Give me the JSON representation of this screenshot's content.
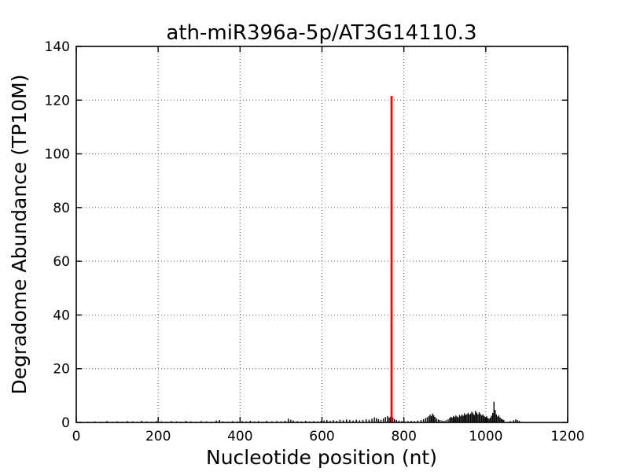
{
  "figure": {
    "background": "#ffffff",
    "frame_color": "#000000",
    "grid_color": "#555555"
  },
  "chart_data": {
    "type": "bar",
    "title": "ath-miR396a-5p/AT3G14110.3",
    "xlabel": "Nucleotide position (nt)",
    "ylabel": "Degradome Abundance (TP10M)",
    "xlim": [
      0,
      1200
    ],
    "ylim": [
      0,
      140
    ],
    "xticks": [
      0,
      200,
      400,
      600,
      800,
      1000,
      1200
    ],
    "yticks": [
      0,
      20,
      40,
      60,
      80,
      100,
      120,
      140
    ],
    "grid": "dotted",
    "legend": "none",
    "bar_color": "#000000",
    "highlight_color": "#ff0000",
    "highlight_peak": {
      "x": 770,
      "y": 121.5
    },
    "bars": [
      [
        28,
        0.3
      ],
      [
        45,
        0.4
      ],
      [
        60,
        0.3
      ],
      [
        75,
        0.5
      ],
      [
        88,
        0.3
      ],
      [
        100,
        0.4
      ],
      [
        112,
        0.3
      ],
      [
        125,
        0.5
      ],
      [
        138,
        0.4
      ],
      [
        150,
        0.3
      ],
      [
        160,
        0.6
      ],
      [
        172,
        0.4
      ],
      [
        184,
        0.3
      ],
      [
        196,
        0.5
      ],
      [
        208,
        0.4
      ],
      [
        220,
        0.3
      ],
      [
        232,
        0.5
      ],
      [
        245,
        0.4
      ],
      [
        256,
        0.3
      ],
      [
        268,
        0.6
      ],
      [
        280,
        0.4
      ],
      [
        292,
        0.3
      ],
      [
        305,
        0.5
      ],
      [
        318,
        0.4
      ],
      [
        330,
        0.3
      ],
      [
        342,
        0.7
      ],
      [
        350,
        0.9
      ],
      [
        358,
        0.4
      ],
      [
        370,
        0.3
      ],
      [
        382,
        0.5
      ],
      [
        394,
        0.4
      ],
      [
        405,
        0.5
      ],
      [
        415,
        0.4
      ],
      [
        425,
        0.6
      ],
      [
        435,
        0.4
      ],
      [
        445,
        0.5
      ],
      [
        455,
        0.3
      ],
      [
        465,
        0.6
      ],
      [
        478,
        0.4
      ],
      [
        490,
        0.5
      ],
      [
        500,
        0.4
      ],
      [
        510,
        0.6
      ],
      [
        518,
        1.4
      ],
      [
        524,
        1.0
      ],
      [
        530,
        0.7
      ],
      [
        540,
        0.5
      ],
      [
        550,
        0.4
      ],
      [
        560,
        0.6
      ],
      [
        570,
        0.4
      ],
      [
        580,
        0.5
      ],
      [
        590,
        0.4
      ],
      [
        598,
        0.6
      ],
      [
        605,
        0.7
      ],
      [
        612,
        0.9
      ],
      [
        620,
        0.6
      ],
      [
        628,
        0.8
      ],
      [
        636,
        0.6
      ],
      [
        644,
        1.0
      ],
      [
        652,
        0.8
      ],
      [
        660,
        1.1
      ],
      [
        668,
        0.9
      ],
      [
        676,
        0.7
      ],
      [
        684,
        1.0
      ],
      [
        692,
        0.8
      ],
      [
        700,
        0.9
      ],
      [
        708,
        1.2
      ],
      [
        715,
        1.0
      ],
      [
        722,
        1.4
      ],
      [
        728,
        1.9
      ],
      [
        733,
        1.6
      ],
      [
        738,
        1.2
      ],
      [
        744,
        1.0
      ],
      [
        750,
        1.5
      ],
      [
        755,
        2.0
      ],
      [
        760,
        2.4
      ],
      [
        764,
        1.8
      ],
      [
        767,
        2.1
      ],
      [
        773,
        1.8
      ],
      [
        777,
        1.3
      ],
      [
        782,
        0.9
      ],
      [
        788,
        0.7
      ],
      [
        795,
        0.5
      ],
      [
        802,
        0.4
      ],
      [
        810,
        0.5
      ],
      [
        818,
        0.6
      ],
      [
        826,
        0.5
      ],
      [
        834,
        0.7
      ],
      [
        842,
        0.9
      ],
      [
        848,
        1.2
      ],
      [
        853,
        1.6
      ],
      [
        857,
        1.9
      ],
      [
        861,
        2.3
      ],
      [
        864,
        2.9
      ],
      [
        867,
        2.4
      ],
      [
        870,
        3.3
      ],
      [
        873,
        2.7
      ],
      [
        876,
        2.0
      ],
      [
        880,
        1.5
      ],
      [
        884,
        1.1
      ],
      [
        888,
        0.9
      ],
      [
        893,
        0.7
      ],
      [
        898,
        0.6
      ],
      [
        903,
        0.8
      ],
      [
        908,
        1.2
      ],
      [
        912,
        1.7
      ],
      [
        915,
        2.1
      ],
      [
        918,
        1.8
      ],
      [
        921,
        2.4
      ],
      [
        924,
        2.0
      ],
      [
        927,
        2.6
      ],
      [
        930,
        2.2
      ],
      [
        933,
        1.9
      ],
      [
        936,
        2.8
      ],
      [
        939,
        2.3
      ],
      [
        942,
        3.0
      ],
      [
        945,
        2.5
      ],
      [
        948,
        3.4
      ],
      [
        951,
        2.8
      ],
      [
        954,
        3.1
      ],
      [
        957,
        3.6
      ],
      [
        960,
        2.9
      ],
      [
        963,
        3.3
      ],
      [
        966,
        4.0
      ],
      [
        969,
        3.4
      ],
      [
        972,
        2.8
      ],
      [
        975,
        4.3
      ],
      [
        978,
        3.6
      ],
      [
        981,
        3.0
      ],
      [
        984,
        3.8
      ],
      [
        987,
        3.2
      ],
      [
        990,
        2.6
      ],
      [
        993,
        3.0
      ],
      [
        996,
        2.4
      ],
      [
        999,
        1.9
      ],
      [
        1002,
        2.3
      ],
      [
        1005,
        1.7
      ],
      [
        1008,
        1.4
      ],
      [
        1011,
        1.8
      ],
      [
        1014,
        2.5
      ],
      [
        1017,
        3.5
      ],
      [
        1020,
        7.7
      ],
      [
        1023,
        4.6
      ],
      [
        1026,
        3.0
      ],
      [
        1029,
        2.2
      ],
      [
        1032,
        2.6
      ],
      [
        1035,
        1.8
      ],
      [
        1038,
        1.4
      ],
      [
        1041,
        1.1
      ],
      [
        1044,
        0.9
      ],
      [
        1060,
        0.5
      ],
      [
        1068,
        0.8
      ],
      [
        1073,
        1.1
      ],
      [
        1077,
        0.9
      ],
      [
        1082,
        0.6
      ]
    ]
  }
}
